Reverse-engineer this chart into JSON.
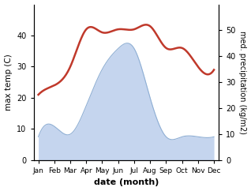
{
  "months": [
    "Jan",
    "Feb",
    "Mar",
    "Apr",
    "May",
    "Jun",
    "Jul",
    "Aug",
    "Sep",
    "Oct",
    "Nov",
    "Dec"
  ],
  "temperature": [
    21,
    24,
    30,
    42,
    41,
    42,
    42,
    43,
    36,
    36,
    30,
    29
  ],
  "precipitation": [
    9,
    13,
    10,
    21,
    35,
    43,
    43,
    24,
    9,
    9,
    9,
    9
  ],
  "temp_color": "#c0392b",
  "precip_fill_color": "#c5d5ee",
  "precip_line_color": "#8fafd4",
  "left_ylim": [
    0,
    50
  ],
  "right_ylim": [
    0,
    60
  ],
  "left_yticks": [
    0,
    10,
    20,
    30,
    40
  ],
  "right_yticks": [
    0,
    10,
    20,
    30,
    40,
    50
  ],
  "ylabel_left": "max temp (C)",
  "ylabel_right": "med. precipitation (kg/m2)",
  "xlabel": "date (month)",
  "fig_width": 3.18,
  "fig_height": 2.42,
  "dpi": 100
}
